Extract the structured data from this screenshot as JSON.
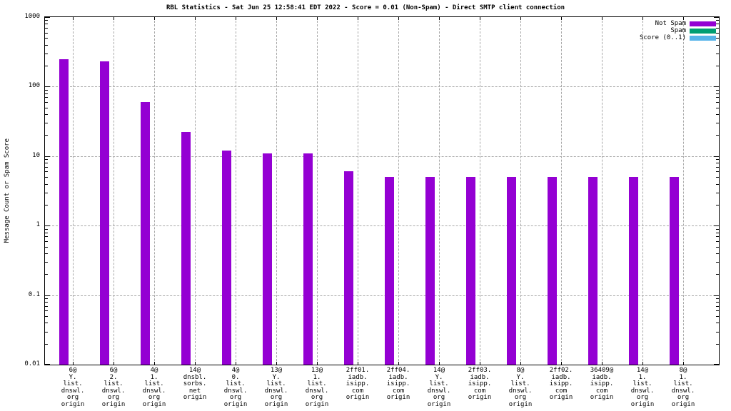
{
  "title": "RBL Statistics - Sat Jun 25 12:58:41 EDT 2022 - Score = 0.01 (Non-Spam) - Direct SMTP client connection",
  "colors": {
    "not_spam": "#9400d3",
    "spam": "#009e73",
    "score": "#56b4e9",
    "grid": "#a8a8a8",
    "axis": "#000000",
    "background": "#ffffff"
  },
  "legend": {
    "position": "inside-top-right",
    "entries": [
      {
        "label": "Not Spam",
        "color": "#9400d3"
      },
      {
        "label": "Spam",
        "color": "#009e73"
      },
      {
        "label": "Score (0..1)",
        "color": "#56b4e9"
      }
    ]
  },
  "y_axis": {
    "label": "Message Count or Spam Score",
    "scale": "log",
    "tick_labels": [
      "1000",
      "100",
      "10",
      "1",
      "0.1",
      "0.01"
    ],
    "tick_values": [
      1000,
      100,
      10,
      1,
      0.1,
      0.01
    ]
  },
  "chart_data": {
    "type": "bar",
    "title": "RBL Statistics - Sat Jun 25 12:58:41 EDT 2022 - Score = 0.01 (Non-Spam) - Direct SMTP client connection",
    "ylabel": "Message Count or Spam Score",
    "yscale": "log",
    "ylim": [
      0.01,
      1000
    ],
    "grid": true,
    "legend_position": "inside top-right",
    "categories": [
      [
        "6@",
        "Y.",
        "list.",
        "dnswl.",
        "org",
        "origin"
      ],
      [
        "6@",
        "2.",
        "list.",
        "dnswl.",
        "org",
        "origin"
      ],
      [
        "4@",
        "1.",
        "list.",
        "dnswl.",
        "org",
        "origin"
      ],
      [
        "14@",
        "dnsbl.",
        "sorbs.",
        "net",
        "origin"
      ],
      [
        "4@",
        "0.",
        "list.",
        "dnswl.",
        "org",
        "origin"
      ],
      [
        "13@",
        "Y.",
        "list.",
        "dnswl.",
        "org",
        "origin"
      ],
      [
        "13@",
        "1.",
        "list.",
        "dnswl.",
        "org",
        "origin"
      ],
      [
        "2ff01.",
        "iadb.",
        "isipp.",
        "com",
        "origin"
      ],
      [
        "2ff04.",
        "iadb.",
        "isipp.",
        "com",
        "origin"
      ],
      [
        "14@",
        "Y.",
        "list.",
        "dnswl.",
        "org",
        "origin"
      ],
      [
        "2ff03.",
        "iadb.",
        "isipp.",
        "com",
        "origin"
      ],
      [
        "8@",
        "Y.",
        "list.",
        "dnswl.",
        "org",
        "origin"
      ],
      [
        "2ff02.",
        "iadb.",
        "isipp.",
        "com",
        "origin"
      ],
      [
        "36409@",
        "iadb.",
        "isipp.",
        "com",
        "origin"
      ],
      [
        "14@",
        "1.",
        "list.",
        "dnswl.",
        "org",
        "origin"
      ],
      [
        "8@",
        "1.",
        "list.",
        "dnswl.",
        "org",
        "origin"
      ]
    ],
    "series": [
      {
        "name": "Not Spam",
        "color": "#9400d3",
        "values": [
          250,
          230,
          60,
          22,
          12,
          11,
          11,
          6,
          5,
          5,
          5,
          5,
          5,
          5,
          5,
          5
        ]
      },
      {
        "name": "Spam",
        "color": "#009e73",
        "values": []
      },
      {
        "name": "Score (0..1)",
        "color": "#56b4e9",
        "values": []
      }
    ]
  }
}
